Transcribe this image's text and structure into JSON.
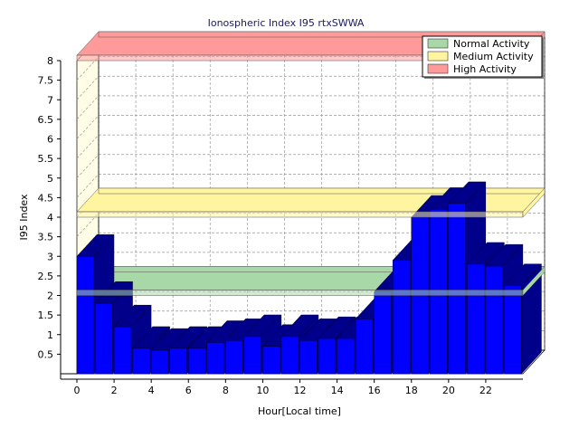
{
  "chart_data": {
    "type": "bar",
    "title": "Ionospheric Index I95 rtxSWWA",
    "xlabel": "Hour[Local time]",
    "ylabel": "I95 Index",
    "ylim": [
      0,
      8
    ],
    "y_ticks": [
      "0.5",
      "1",
      "1.5",
      "2",
      "2.5",
      "3",
      "3.5",
      "4",
      "4.5",
      "5",
      "5.5",
      "6",
      "6.5",
      "7",
      "7.5",
      "8"
    ],
    "x_ticks": [
      "0",
      "2",
      "4",
      "6",
      "8",
      "10",
      "12",
      "14",
      "16",
      "18",
      "20",
      "22"
    ],
    "grid": true,
    "legend_position": "top-right",
    "bands": [
      {
        "name": "Normal Activity",
        "y": 2.0,
        "color": "#a8d8a8"
      },
      {
        "name": "Medium Activity",
        "y": 4.0,
        "color": "#fff4a0"
      },
      {
        "name": "High Activity",
        "y": 8.0,
        "color": "#ff9a9a"
      }
    ],
    "series": [
      {
        "values": [
          3.0,
          1.8,
          1.2,
          0.65,
          0.6,
          0.65,
          0.65,
          0.8,
          0.85,
          0.95,
          0.7,
          0.95,
          0.85,
          0.9,
          0.9,
          1.4,
          2.1,
          2.9,
          4.0,
          4.2,
          4.35,
          2.8,
          2.75,
          2.25
        ],
        "color": "#0000ff",
        "side_color": "#00008b"
      }
    ]
  }
}
